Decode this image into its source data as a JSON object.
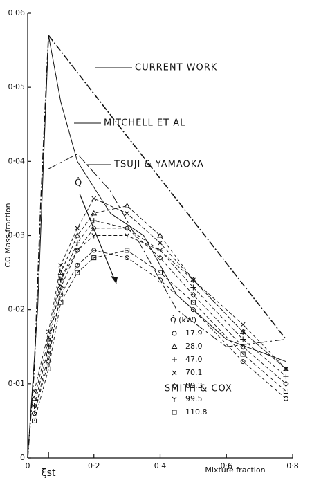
{
  "chart_data": {
    "type": "line",
    "xlabel": "Mixture fraction",
    "ylabel": "CO Mass fraction",
    "xlim": [
      0,
      0.8
    ],
    "ylim": [
      0,
      0.06
    ],
    "xticks": [
      0,
      {
        "value": 0.2,
        "label": "0·2"
      },
      {
        "value": 0.4,
        "label": "0·4"
      },
      {
        "value": 0.6,
        "label": "0·6"
      },
      {
        "value": 0.8,
        "label": "0·8"
      }
    ],
    "yticks": [
      0,
      {
        "value": 0.01,
        "label": "0·01"
      },
      {
        "value": 0.02,
        "label": "0·02"
      },
      {
        "value": 0.03,
        "label": "0·03"
      },
      {
        "value": 0.04,
        "label": "0·04"
      },
      {
        "value": 0.05,
        "label": "0·05"
      },
      {
        "value": 0.06,
        "label": "0 06"
      }
    ],
    "xi_st": {
      "label": "ξst",
      "value": 0.063
    },
    "q_arrow_label": "Q̇",
    "legend_title": "Q̇ (kW)",
    "models": [
      {
        "name": "CURRENT WORK",
        "x": [
          0,
          0.02,
          0.04,
          0.063,
          0.15,
          0.3,
          0.5,
          0.78
        ],
        "values": [
          0,
          0.012,
          0.035,
          0.057,
          0.052,
          0.0434,
          0.032,
          0.016
        ]
      },
      {
        "name": "MITCHELL ET AL",
        "x": [
          0,
          0.03,
          0.063,
          0.1,
          0.15,
          0.25,
          0.35,
          0.45,
          0.6,
          0.78
        ],
        "values": [
          0,
          0.02,
          0.057,
          0.048,
          0.04,
          0.033,
          0.03,
          0.022,
          0.016,
          0.013
        ]
      },
      {
        "name": "TSUJI & YAMAOKA",
        "x": [
          0.063,
          0.15,
          0.25,
          0.35,
          0.45,
          0.6,
          0.78
        ],
        "values": [
          0.039,
          0.041,
          0.036,
          0.028,
          0.02,
          0.015,
          0.016
        ]
      }
    ],
    "experiment_name": "SMITH & COX",
    "series": [
      {
        "name": "17.9",
        "x": [
          0.02,
          0.063,
          0.1,
          0.15,
          0.2,
          0.3,
          0.4,
          0.5,
          0.65,
          0.78
        ],
        "values": [
          0.006,
          0.014,
          0.022,
          0.026,
          0.028,
          0.027,
          0.024,
          0.02,
          0.013,
          0.008
        ]
      },
      {
        "name": "28.0",
        "x": [
          0.02,
          0.063,
          0.1,
          0.15,
          0.2,
          0.3,
          0.4,
          0.5,
          0.65,
          0.78
        ],
        "values": [
          0.008,
          0.016,
          0.025,
          0.03,
          0.033,
          0.034,
          0.03,
          0.024,
          0.017,
          0.012
        ]
      },
      {
        "name": "47.0",
        "x": [
          0.02,
          0.063,
          0.1,
          0.15,
          0.2,
          0.3,
          0.4,
          0.5,
          0.65,
          0.78
        ],
        "values": [
          0.007,
          0.015,
          0.024,
          0.029,
          0.032,
          0.031,
          0.028,
          0.023,
          0.016,
          0.011
        ]
      },
      {
        "name": "70.1",
        "x": [
          0.02,
          0.063,
          0.1,
          0.15,
          0.2,
          0.3,
          0.4,
          0.5,
          0.65,
          0.78
        ],
        "values": [
          0.009,
          0.017,
          0.026,
          0.031,
          0.035,
          0.033,
          0.029,
          0.024,
          0.018,
          0.012
        ]
      },
      {
        "name": "89.3",
        "x": [
          0.02,
          0.063,
          0.1,
          0.15,
          0.2,
          0.3,
          0.4,
          0.5,
          0.65,
          0.78
        ],
        "values": [
          0.006,
          0.013,
          0.023,
          0.028,
          0.031,
          0.031,
          0.027,
          0.022,
          0.015,
          0.01
        ]
      },
      {
        "name": "99.5",
        "x": [
          0.02,
          0.063,
          0.1,
          0.15,
          0.2,
          0.3,
          0.4,
          0.5,
          0.65,
          0.78
        ],
        "values": [
          0.007,
          0.015,
          0.024,
          0.028,
          0.03,
          0.03,
          0.028,
          0.024,
          0.017,
          0.012
        ]
      },
      {
        "name": "110.8",
        "x": [
          0.02,
          0.063,
          0.1,
          0.15,
          0.2,
          0.3,
          0.4,
          0.5,
          0.65,
          0.78
        ],
        "values": [
          0.005,
          0.012,
          0.021,
          0.025,
          0.027,
          0.028,
          0.025,
          0.021,
          0.014,
          0.009
        ]
      }
    ]
  }
}
